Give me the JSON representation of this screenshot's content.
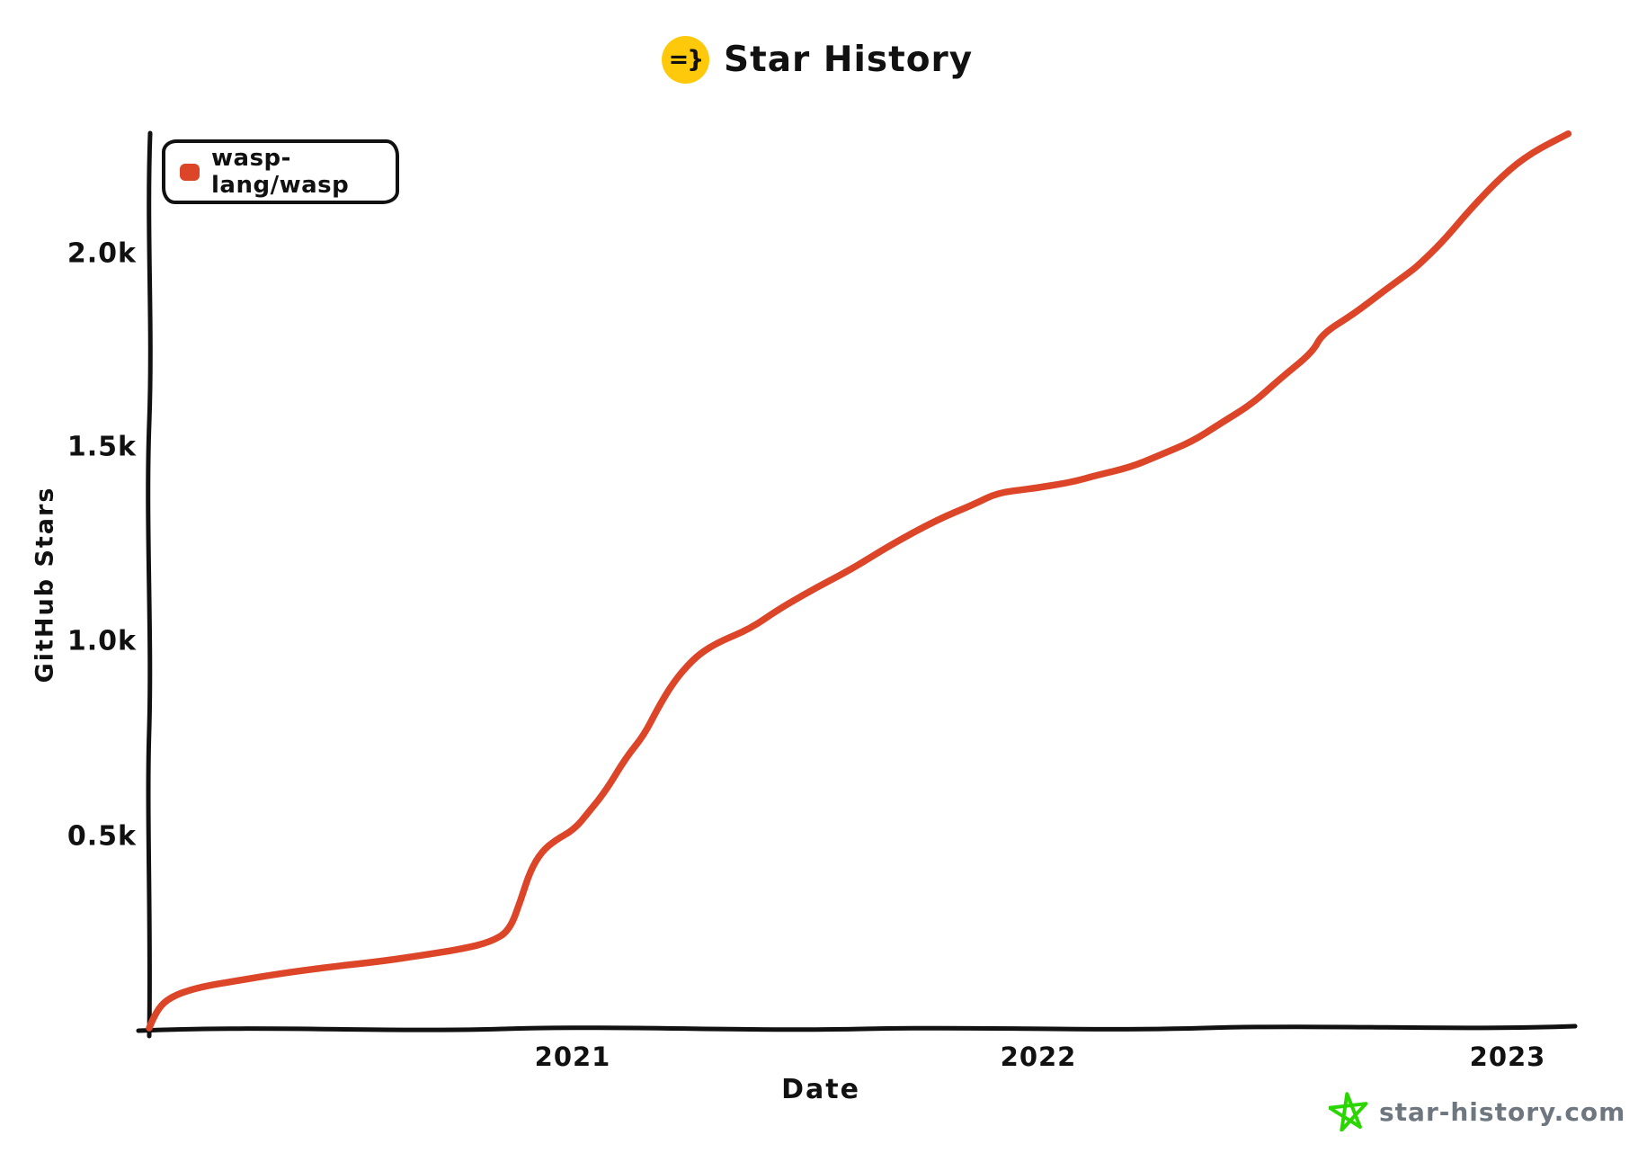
{
  "page": {
    "title": "Star History",
    "title_emoji": "=}",
    "watermark": "star-history.com"
  },
  "legend": {
    "items": [
      {
        "label": "wasp-lang/wasp",
        "color": "#dd4528"
      }
    ]
  },
  "axes": {
    "y_label": "GitHub Stars",
    "x_label": "Date",
    "y_ticks": [
      "2.0k",
      "1.5k",
      "1.0k",
      "0.5k"
    ],
    "x_ticks": [
      "2021",
      "2022",
      "2023"
    ]
  },
  "colors": {
    "series_red": "#dd4528",
    "emoji_yellow": "#ffc90b",
    "star_green": "#2bd600",
    "watermark_gray": "#6e7680",
    "ink": "#111111"
  },
  "chart_data": {
    "type": "line",
    "title": "Star History",
    "xlabel": "Date",
    "ylabel": "GitHub Stars",
    "x_unit": "decimal_year",
    "xlim": [
      2020.085,
      2023.145
    ],
    "ylim": [
      0,
      2310
    ],
    "x_tick_labels": [
      "2021",
      "2022",
      "2023"
    ],
    "y_tick_values": [
      500,
      1000,
      1500,
      2000
    ],
    "y_tick_labels": [
      "0.5k",
      "1.0k",
      "1.5k",
      "2.0k"
    ],
    "grid": false,
    "legend_position": "top-left",
    "series": [
      {
        "name": "wasp-lang/wasp",
        "color": "#dd4528",
        "points": [
          [
            2020.085,
            0
          ],
          [
            2020.1,
            45
          ],
          [
            2020.13,
            80
          ],
          [
            2020.19,
            105
          ],
          [
            2020.28,
            123
          ],
          [
            2020.37,
            141
          ],
          [
            2020.47,
            157
          ],
          [
            2020.57,
            170
          ],
          [
            2020.66,
            185
          ],
          [
            2020.76,
            204
          ],
          [
            2020.82,
            222
          ],
          [
            2020.86,
            250
          ],
          [
            2020.885,
            330
          ],
          [
            2020.905,
            405
          ],
          [
            2020.93,
            455
          ],
          [
            2020.96,
            485
          ],
          [
            2021.0,
            512
          ],
          [
            2021.03,
            555
          ],
          [
            2021.07,
            615
          ],
          [
            2021.11,
            695
          ],
          [
            2021.15,
            755
          ],
          [
            2021.18,
            825
          ],
          [
            2021.21,
            885
          ],
          [
            2021.24,
            930
          ],
          [
            2021.27,
            965
          ],
          [
            2021.31,
            995
          ],
          [
            2021.38,
            1030
          ],
          [
            2021.44,
            1080
          ],
          [
            2021.52,
            1135
          ],
          [
            2021.6,
            1185
          ],
          [
            2021.68,
            1245
          ],
          [
            2021.78,
            1310
          ],
          [
            2021.86,
            1350
          ],
          [
            2021.91,
            1380
          ],
          [
            2021.98,
            1390
          ],
          [
            2022.07,
            1407
          ],
          [
            2022.12,
            1424
          ],
          [
            2022.2,
            1447
          ],
          [
            2022.26,
            1477
          ],
          [
            2022.33,
            1512
          ],
          [
            2022.39,
            1558
          ],
          [
            2022.46,
            1610
          ],
          [
            2022.52,
            1675
          ],
          [
            2022.59,
            1743
          ],
          [
            2022.61,
            1790
          ],
          [
            2022.68,
            1843
          ],
          [
            2022.74,
            1898
          ],
          [
            2022.8,
            1950
          ],
          [
            2022.82,
            1970
          ],
          [
            2022.87,
            2028
          ],
          [
            2022.93,
            2113
          ],
          [
            2023.0,
            2200
          ],
          [
            2023.06,
            2257
          ],
          [
            2023.14,
            2306
          ]
        ]
      }
    ]
  }
}
